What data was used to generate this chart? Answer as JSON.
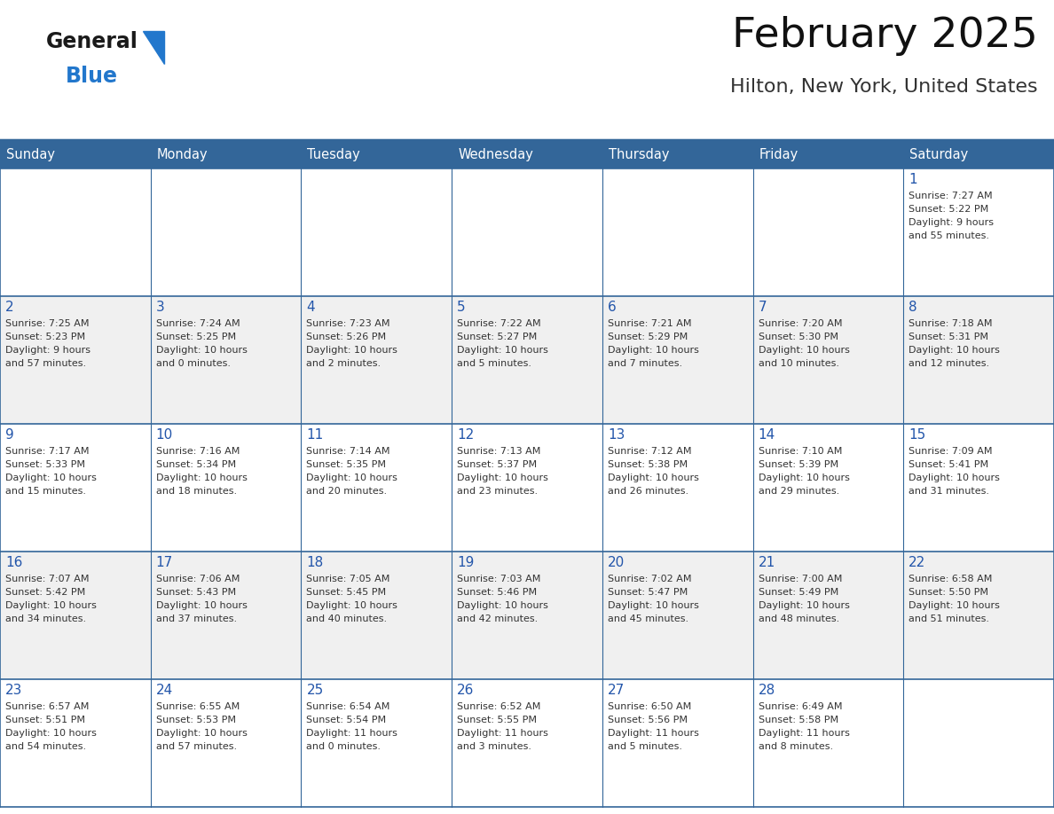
{
  "title": "February 2025",
  "subtitle": "Hilton, New York, United States",
  "header_bg": "#336699",
  "header_text": "#FFFFFF",
  "border_color": "#336699",
  "day_headers": [
    "Sunday",
    "Monday",
    "Tuesday",
    "Wednesday",
    "Thursday",
    "Friday",
    "Saturday"
  ],
  "title_color": "#111111",
  "subtitle_color": "#333333",
  "day_num_color": "#2255AA",
  "cell_text_color": "#333333",
  "cell_bg_white": "#FFFFFF",
  "cell_bg_gray": "#F0F0F0",
  "calendar": [
    [
      null,
      null,
      null,
      null,
      null,
      null,
      {
        "day": "1",
        "sunrise": "7:27 AM",
        "sunset": "5:22 PM",
        "daylight1": "9 hours",
        "daylight2": "and 55 minutes."
      }
    ],
    [
      {
        "day": "2",
        "sunrise": "7:25 AM",
        "sunset": "5:23 PM",
        "daylight1": "9 hours",
        "daylight2": "and 57 minutes."
      },
      {
        "day": "3",
        "sunrise": "7:24 AM",
        "sunset": "5:25 PM",
        "daylight1": "10 hours",
        "daylight2": "and 0 minutes."
      },
      {
        "day": "4",
        "sunrise": "7:23 AM",
        "sunset": "5:26 PM",
        "daylight1": "10 hours",
        "daylight2": "and 2 minutes."
      },
      {
        "day": "5",
        "sunrise": "7:22 AM",
        "sunset": "5:27 PM",
        "daylight1": "10 hours",
        "daylight2": "and 5 minutes."
      },
      {
        "day": "6",
        "sunrise": "7:21 AM",
        "sunset": "5:29 PM",
        "daylight1": "10 hours",
        "daylight2": "and 7 minutes."
      },
      {
        "day": "7",
        "sunrise": "7:20 AM",
        "sunset": "5:30 PM",
        "daylight1": "10 hours",
        "daylight2": "and 10 minutes."
      },
      {
        "day": "8",
        "sunrise": "7:18 AM",
        "sunset": "5:31 PM",
        "daylight1": "10 hours",
        "daylight2": "and 12 minutes."
      }
    ],
    [
      {
        "day": "9",
        "sunrise": "7:17 AM",
        "sunset": "5:33 PM",
        "daylight1": "10 hours",
        "daylight2": "and 15 minutes."
      },
      {
        "day": "10",
        "sunrise": "7:16 AM",
        "sunset": "5:34 PM",
        "daylight1": "10 hours",
        "daylight2": "and 18 minutes."
      },
      {
        "day": "11",
        "sunrise": "7:14 AM",
        "sunset": "5:35 PM",
        "daylight1": "10 hours",
        "daylight2": "and 20 minutes."
      },
      {
        "day": "12",
        "sunrise": "7:13 AM",
        "sunset": "5:37 PM",
        "daylight1": "10 hours",
        "daylight2": "and 23 minutes."
      },
      {
        "day": "13",
        "sunrise": "7:12 AM",
        "sunset": "5:38 PM",
        "daylight1": "10 hours",
        "daylight2": "and 26 minutes."
      },
      {
        "day": "14",
        "sunrise": "7:10 AM",
        "sunset": "5:39 PM",
        "daylight1": "10 hours",
        "daylight2": "and 29 minutes."
      },
      {
        "day": "15",
        "sunrise": "7:09 AM",
        "sunset": "5:41 PM",
        "daylight1": "10 hours",
        "daylight2": "and 31 minutes."
      }
    ],
    [
      {
        "day": "16",
        "sunrise": "7:07 AM",
        "sunset": "5:42 PM",
        "daylight1": "10 hours",
        "daylight2": "and 34 minutes."
      },
      {
        "day": "17",
        "sunrise": "7:06 AM",
        "sunset": "5:43 PM",
        "daylight1": "10 hours",
        "daylight2": "and 37 minutes."
      },
      {
        "day": "18",
        "sunrise": "7:05 AM",
        "sunset": "5:45 PM",
        "daylight1": "10 hours",
        "daylight2": "and 40 minutes."
      },
      {
        "day": "19",
        "sunrise": "7:03 AM",
        "sunset": "5:46 PM",
        "daylight1": "10 hours",
        "daylight2": "and 42 minutes."
      },
      {
        "day": "20",
        "sunrise": "7:02 AM",
        "sunset": "5:47 PM",
        "daylight1": "10 hours",
        "daylight2": "and 45 minutes."
      },
      {
        "day": "21",
        "sunrise": "7:00 AM",
        "sunset": "5:49 PM",
        "daylight1": "10 hours",
        "daylight2": "and 48 minutes."
      },
      {
        "day": "22",
        "sunrise": "6:58 AM",
        "sunset": "5:50 PM",
        "daylight1": "10 hours",
        "daylight2": "and 51 minutes."
      }
    ],
    [
      {
        "day": "23",
        "sunrise": "6:57 AM",
        "sunset": "5:51 PM",
        "daylight1": "10 hours",
        "daylight2": "and 54 minutes."
      },
      {
        "day": "24",
        "sunrise": "6:55 AM",
        "sunset": "5:53 PM",
        "daylight1": "10 hours",
        "daylight2": "and 57 minutes."
      },
      {
        "day": "25",
        "sunrise": "6:54 AM",
        "sunset": "5:54 PM",
        "daylight1": "11 hours",
        "daylight2": "and 0 minutes."
      },
      {
        "day": "26",
        "sunrise": "6:52 AM",
        "sunset": "5:55 PM",
        "daylight1": "11 hours",
        "daylight2": "and 3 minutes."
      },
      {
        "day": "27",
        "sunrise": "6:50 AM",
        "sunset": "5:56 PM",
        "daylight1": "11 hours",
        "daylight2": "and 5 minutes."
      },
      {
        "day": "28",
        "sunrise": "6:49 AM",
        "sunset": "5:58 PM",
        "daylight1": "11 hours",
        "daylight2": "and 8 minutes."
      },
      null
    ]
  ],
  "logo_text1": "General",
  "logo_text2": "Blue",
  "logo_color1": "#1A1A1A",
  "logo_color2": "#2277CC",
  "logo_triangle_color": "#2277CC",
  "fig_width": 11.88,
  "fig_height": 9.18,
  "dpi": 100
}
